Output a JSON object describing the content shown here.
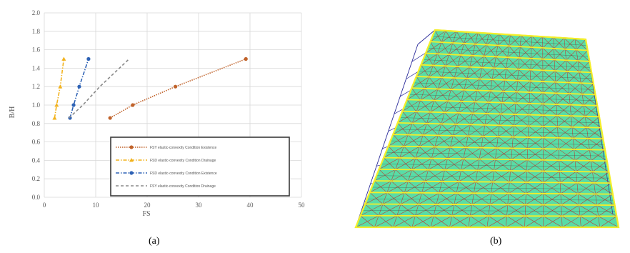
{
  "captions": {
    "a": "(a)",
    "b": "(b)"
  },
  "colors": {
    "grid": "#d8d8d8",
    "mesh_fill": "#59dca6",
    "mesh_band": "#f3ee2a",
    "mesh_edge": "#d21a1a",
    "mesh_frame": "#2a2a99"
  },
  "chart_data": {
    "type": "line",
    "title": "",
    "xlabel": "FS",
    "ylabel": "B/H",
    "xlim": [
      0,
      50
    ],
    "ylim": [
      0.0,
      2.0
    ],
    "xticks": [
      0,
      10,
      20,
      30,
      40,
      50
    ],
    "yticks": [
      0.0,
      0.2,
      0.4,
      0.6,
      0.8,
      1.0,
      1.2,
      1.4,
      1.6,
      1.8,
      2.0
    ],
    "grid": true,
    "legend_position": "bottom-right",
    "series": [
      {
        "name": "FSY elastic-convexity Condition Existence",
        "color": "#c0622a",
        "dash": "1.5 1.5",
        "marker": "circle",
        "x": [
          12.8,
          17.2,
          25.5,
          39.2
        ],
        "y": [
          0.86,
          1.0,
          1.2,
          1.5
        ]
      },
      {
        "name": "FSD elastic-convexity Condition Drainage",
        "color": "#f2b21c",
        "dash": "5 2 1.5 2",
        "marker": "triangle",
        "x": [
          2.0,
          2.4,
          3.1,
          3.8
        ],
        "y": [
          0.86,
          1.0,
          1.2,
          1.5
        ]
      },
      {
        "name": "FSD elastic-convexity Condition Existence",
        "color": "#2e62b5",
        "dash": "5 2 1.5 2",
        "marker": "circle",
        "x": [
          5.0,
          5.7,
          6.8,
          8.6
        ],
        "y": [
          0.86,
          1.0,
          1.2,
          1.5
        ]
      },
      {
        "name": "FSY elastic-convexity Condition Drainage",
        "color": "#888888",
        "dash": "4 3",
        "marker": "none",
        "x": [
          4.8,
          7.5,
          10.8,
          16.5
        ],
        "y": [
          0.86,
          1.0,
          1.2,
          1.5
        ]
      }
    ]
  }
}
